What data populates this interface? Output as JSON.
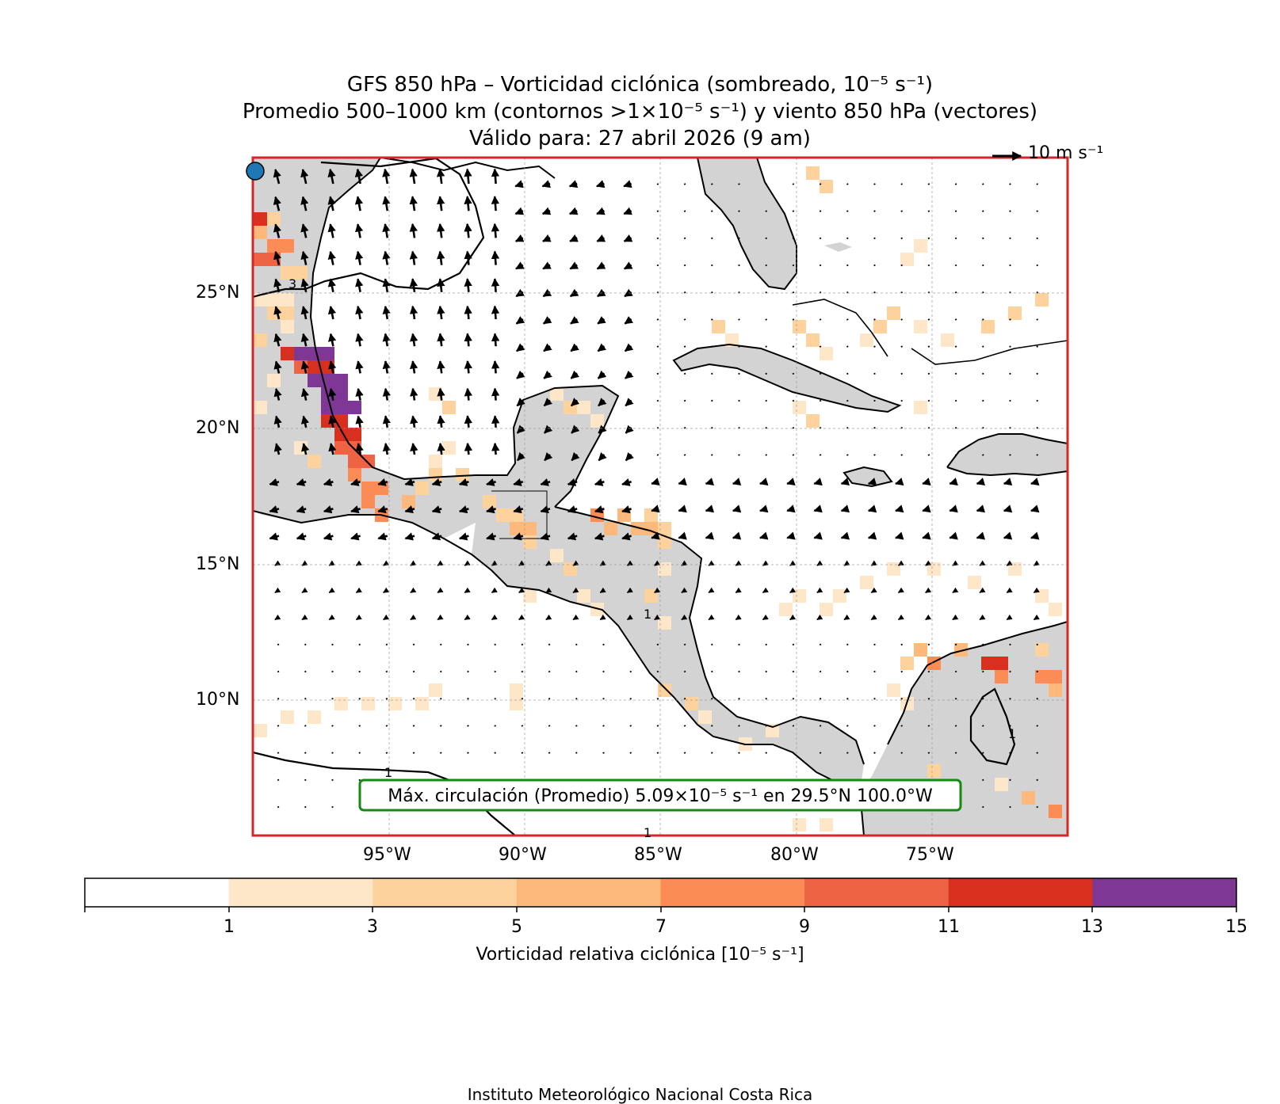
{
  "title": {
    "line1": "GFS 850 hPa – Vorticidad ciclónica (sombreado, 10⁻⁵ s⁻¹)",
    "line2": "Promedio 500–1000 km (contornos >1×10⁻⁵ s⁻¹) y viento 850 hPa (vectores)",
    "line3": "Válido para: 27 abril 2026 (9 am)"
  },
  "reference_vector": "10 m s⁻¹",
  "annotation": "Máx. circulación (Promedio) 5.09×10⁻⁵ s⁻¹ en 29.5°N 100.0°W",
  "lat_labels": [
    "25°N",
    "20°N",
    "15°N",
    "10°N"
  ],
  "lon_labels": [
    "95°W",
    "90°W",
    "85°W",
    "80°W",
    "75°W"
  ],
  "contour_labels": [
    "3",
    "1",
    "1",
    "1",
    "1"
  ],
  "colorbar": {
    "label": "Vorticidad relativa ciclónica [10⁻⁵ s⁻¹]",
    "ticks": [
      "1",
      "3",
      "5",
      "7",
      "9",
      "11",
      "13",
      "15"
    ],
    "colors": [
      "#ffffff",
      "#fee6c8",
      "#fdd29c",
      "#fdb97c",
      "#fc8c55",
      "#ee6344",
      "#d7301f",
      "#7e3794"
    ]
  },
  "credit": "Instituto Meteorológico Nacional Costa Rica",
  "colors": {
    "frame": "#d62728",
    "land": "#d3d3d3",
    "annotation_border": "#138a13"
  }
}
